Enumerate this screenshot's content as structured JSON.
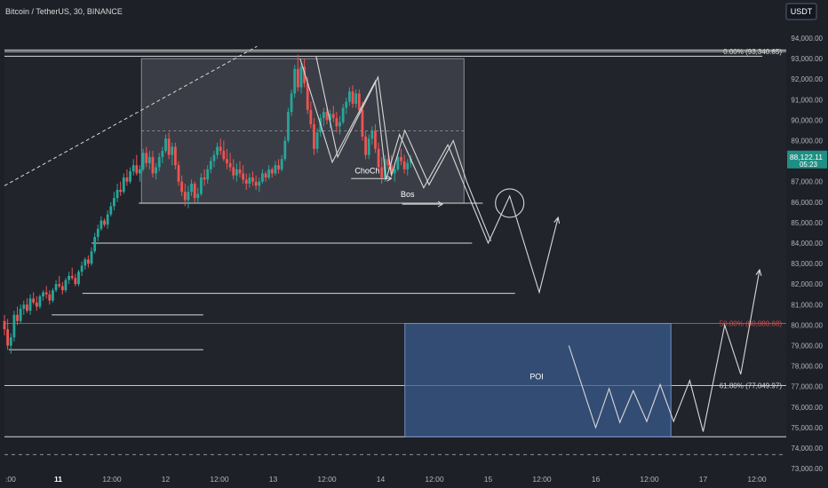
{
  "header": {
    "title": "Bitcoin / TetherUS, 30, BINANCE",
    "currency": "USDT"
  },
  "colors": {
    "background": "#1e2027",
    "panel": "#131722",
    "up": "#26a69a",
    "down": "#ef5350",
    "lines": "#d8d8d8",
    "fib_red": "#d44a4a",
    "poi_fill": "#3a5a8c",
    "last_price": "#1f8f84"
  },
  "chart_data": {
    "type": "candlestick",
    "title": "Bitcoin / TetherUS, 30, BINANCE",
    "ylim": [
      73000,
      94600
    ],
    "y_ticks": [
      {
        "value": 94000,
        "label": "94,000.00"
      },
      {
        "value": 93000,
        "label": "93,000.00"
      },
      {
        "value": 92000,
        "label": "92,000.00"
      },
      {
        "value": 91000,
        "label": "91,000.00"
      },
      {
        "value": 90000,
        "label": "90,000.00"
      },
      {
        "value": 89000,
        "label": "89,000.00"
      },
      {
        "value": 88000,
        "label": "88,000.00"
      },
      {
        "value": 87000,
        "label": "87,000.00"
      },
      {
        "value": 86000,
        "label": "86,000.00"
      },
      {
        "value": 85000,
        "label": "85,000.00"
      },
      {
        "value": 84000,
        "label": "84,000.00"
      },
      {
        "value": 83000,
        "label": "83,000.00"
      },
      {
        "value": 82000,
        "label": "82,000.00"
      },
      {
        "value": 81000,
        "label": "81,000.00"
      },
      {
        "value": 80000,
        "label": "80,000.00"
      },
      {
        "value": 79000,
        "label": "79,000.00"
      },
      {
        "value": 78000,
        "label": "78,000.00"
      },
      {
        "value": 77000,
        "label": "77,000.00"
      },
      {
        "value": 76000,
        "label": "76,000.00"
      },
      {
        "value": 75000,
        "label": "75,000.00"
      },
      {
        "value": 74000,
        "label": "74,000.00"
      },
      {
        "value": 73000,
        "label": "73,000.00"
      }
    ],
    "x_ticks": [
      {
        "t": 0,
        "label": ":00"
      },
      {
        "t": 1,
        "label": "11"
      },
      {
        "t": 2,
        "label": "12:00"
      },
      {
        "t": 3,
        "label": "12"
      },
      {
        "t": 4,
        "label": "12:00"
      },
      {
        "t": 5,
        "label": "13"
      },
      {
        "t": 6,
        "label": "12:00"
      },
      {
        "t": 7,
        "label": "14"
      },
      {
        "t": 8,
        "label": "12:00"
      },
      {
        "t": 9,
        "label": "15"
      },
      {
        "t": 10,
        "label": "12:00"
      },
      {
        "t": 11,
        "label": "16"
      },
      {
        "t": 12,
        "label": "12:00"
      },
      {
        "t": 13,
        "label": "17"
      },
      {
        "t": 14,
        "label": "12:00"
      }
    ],
    "last_price": {
      "value": 88122.11,
      "label": "88,122.11",
      "countdown": "05:23"
    },
    "candles": [
      [
        0.0,
        80200,
        80500,
        79500,
        79800
      ],
      [
        0.06,
        79800,
        80300,
        78800,
        79000
      ],
      [
        0.12,
        79000,
        79600,
        78600,
        79400
      ],
      [
        0.18,
        79400,
        80700,
        79200,
        80500
      ],
      [
        0.24,
        80500,
        80900,
        80000,
        80200
      ],
      [
        0.3,
        80200,
        81000,
        80100,
        80800
      ],
      [
        0.36,
        80800,
        81200,
        80500,
        81000
      ],
      [
        0.42,
        81000,
        81300,
        80600,
        80700
      ],
      [
        0.48,
        80700,
        81500,
        80500,
        81300
      ],
      [
        0.54,
        81300,
        81600,
        81000,
        81100
      ],
      [
        0.6,
        81100,
        81400,
        80700,
        80900
      ],
      [
        0.66,
        80900,
        81500,
        80800,
        81400
      ],
      [
        0.72,
        81400,
        81700,
        81200,
        81600
      ],
      [
        0.78,
        81600,
        81900,
        81300,
        81500
      ],
      [
        0.84,
        81500,
        81700,
        81000,
        81200
      ],
      [
        0.9,
        81200,
        81800,
        81100,
        81700
      ],
      [
        0.96,
        81700,
        82200,
        81600,
        82000
      ],
      [
        1.02,
        82000,
        82400,
        81800,
        81900
      ],
      [
        1.08,
        81900,
        82100,
        81500,
        81700
      ],
      [
        1.14,
        81700,
        82300,
        81600,
        82200
      ],
      [
        1.2,
        82200,
        82600,
        82000,
        82400
      ],
      [
        1.26,
        82400,
        82800,
        82200,
        82300
      ],
      [
        1.32,
        82300,
        82500,
        81900,
        82000
      ],
      [
        1.38,
        82000,
        82700,
        81900,
        82600
      ],
      [
        1.44,
        82600,
        83100,
        82400,
        82900
      ],
      [
        1.5,
        82900,
        83300,
        82700,
        83200
      ],
      [
        1.56,
        83200,
        83400,
        82800,
        83000
      ],
      [
        1.62,
        83000,
        83800,
        82900,
        83600
      ],
      [
        1.68,
        83600,
        84500,
        83500,
        84300
      ],
      [
        1.74,
        84300,
        84900,
        84100,
        84700
      ],
      [
        1.8,
        84700,
        85300,
        84600,
        85100
      ],
      [
        1.86,
        85100,
        85200,
        84800,
        84900
      ],
      [
        1.92,
        84900,
        85600,
        84700,
        85400
      ],
      [
        1.98,
        85400,
        86000,
        85300,
        85800
      ],
      [
        2.04,
        85800,
        86500,
        85600,
        86200
      ],
      [
        2.1,
        86200,
        86900,
        86000,
        86600
      ],
      [
        2.16,
        86600,
        87000,
        86300,
        86500
      ],
      [
        2.22,
        86500,
        87400,
        86400,
        87200
      ],
      [
        2.28,
        87200,
        87600,
        86800,
        87000
      ],
      [
        2.34,
        87000,
        87700,
        86900,
        87500
      ],
      [
        2.4,
        87500,
        88100,
        87300,
        87800
      ],
      [
        2.46,
        87800,
        88300,
        87300,
        87400
      ],
      [
        2.52,
        87400,
        87800,
        87000,
        87600
      ],
      [
        2.58,
        87600,
        88600,
        87500,
        88400
      ],
      [
        2.64,
        88400,
        88700,
        87700,
        87900
      ],
      [
        2.7,
        87900,
        88500,
        87600,
        88200
      ],
      [
        2.76,
        88200,
        88500,
        87200,
        87400
      ],
      [
        2.82,
        87400,
        87900,
        87100,
        87700
      ],
      [
        2.88,
        87700,
        88400,
        87500,
        88200
      ],
      [
        2.94,
        88200,
        88700,
        87900,
        88500
      ],
      [
        3.0,
        88500,
        89300,
        88400,
        89100
      ],
      [
        3.06,
        89100,
        89400,
        88100,
        88300
      ],
      [
        3.12,
        88300,
        88900,
        87800,
        88700
      ],
      [
        3.18,
        88700,
        88900,
        87600,
        87800
      ],
      [
        3.24,
        87800,
        88000,
        86800,
        87000
      ],
      [
        3.3,
        87000,
        87300,
        86300,
        86500
      ],
      [
        3.36,
        86500,
        86900,
        85800,
        86100
      ],
      [
        3.42,
        86100,
        86800,
        85700,
        86500
      ],
      [
        3.48,
        86500,
        87100,
        86300,
        86900
      ],
      [
        3.54,
        86900,
        87000,
        86000,
        86200
      ],
      [
        3.6,
        86200,
        86700,
        85900,
        86400
      ],
      [
        3.66,
        86400,
        87400,
        86300,
        87200
      ],
      [
        3.72,
        87200,
        87600,
        86800,
        87100
      ],
      [
        3.78,
        87100,
        87800,
        86900,
        87600
      ],
      [
        3.84,
        87600,
        88200,
        87400,
        88000
      ],
      [
        3.9,
        88000,
        88500,
        87700,
        88300
      ],
      [
        3.96,
        88300,
        88900,
        88100,
        88700
      ],
      [
        4.02,
        88700,
        89100,
        88300,
        88500
      ],
      [
        4.08,
        88500,
        89000,
        88000,
        88100
      ],
      [
        4.14,
        88100,
        88600,
        87600,
        87900
      ],
      [
        4.2,
        87900,
        88400,
        87500,
        87700
      ],
      [
        4.26,
        87700,
        88100,
        87100,
        87300
      ],
      [
        4.32,
        87300,
        87900,
        87000,
        87600
      ],
      [
        4.38,
        87600,
        88000,
        87200,
        87400
      ],
      [
        4.44,
        87400,
        87800,
        86900,
        87100
      ],
      [
        4.5,
        87100,
        87400,
        86600,
        86900
      ],
      [
        4.56,
        86900,
        87400,
        86700,
        87200
      ],
      [
        4.62,
        87200,
        87500,
        86800,
        87000
      ],
      [
        4.68,
        87000,
        87300,
        86600,
        86800
      ],
      [
        4.74,
        86800,
        87200,
        86500,
        87000
      ],
      [
        4.8,
        87000,
        87600,
        86900,
        87400
      ],
      [
        4.86,
        87400,
        87500,
        87000,
        87200
      ],
      [
        4.92,
        87200,
        87800,
        87100,
        87600
      ],
      [
        4.98,
        87600,
        87700,
        87200,
        87400
      ],
      [
        5.04,
        87400,
        88000,
        87300,
        87800
      ],
      [
        5.1,
        87800,
        88100,
        87400,
        87600
      ],
      [
        5.16,
        87600,
        88300,
        87500,
        88100
      ],
      [
        5.22,
        88100,
        89200,
        88000,
        89000
      ],
      [
        5.28,
        89000,
        90600,
        88900,
        90400
      ],
      [
        5.34,
        90400,
        91500,
        90200,
        91300
      ],
      [
        5.4,
        91300,
        92700,
        91100,
        92500
      ],
      [
        5.46,
        92500,
        93200,
        91400,
        91600
      ],
      [
        5.52,
        91600,
        92900,
        91300,
        92600
      ],
      [
        5.58,
        92600,
        93000,
        91600,
        91800
      ],
      [
        5.64,
        91800,
        92100,
        90300,
        90500
      ],
      [
        5.7,
        90500,
        90900,
        89600,
        89800
      ],
      [
        5.76,
        89800,
        90100,
        88300,
        88600
      ],
      [
        5.82,
        88600,
        89600,
        88400,
        89400
      ],
      [
        5.88,
        89400,
        90300,
        89200,
        90100
      ],
      [
        5.94,
        90100,
        90600,
        89700,
        90400
      ],
      [
        6.0,
        90400,
        90700,
        89800,
        90000
      ],
      [
        6.06,
        90000,
        90500,
        89600,
        90300
      ],
      [
        6.12,
        90300,
        90700,
        89900,
        90100
      ],
      [
        6.18,
        90100,
        90400,
        89400,
        89700
      ],
      [
        6.24,
        89700,
        90200,
        89300,
        89900
      ],
      [
        6.3,
        89900,
        90800,
        89800,
        90600
      ],
      [
        6.36,
        90600,
        91100,
        90300,
        90900
      ],
      [
        6.42,
        90900,
        91600,
        90700,
        91400
      ],
      [
        6.48,
        91400,
        91700,
        90600,
        90800
      ],
      [
        6.54,
        90800,
        91500,
        90600,
        91300
      ],
      [
        6.6,
        91300,
        91500,
        90300,
        90500
      ],
      [
        6.66,
        90500,
        90900,
        89000,
        89200
      ],
      [
        6.72,
        89200,
        89500,
        88100,
        88300
      ],
      [
        6.78,
        88300,
        89300,
        88100,
        89100
      ],
      [
        6.84,
        89100,
        89700,
        88800,
        89500
      ],
      [
        6.9,
        89500,
        89800,
        88400,
        88600
      ],
      [
        6.96,
        88600,
        88900,
        87500,
        87700
      ],
      [
        7.02,
        87700,
        88200,
        86900,
        87200
      ],
      [
        7.08,
        87200,
        88300,
        87000,
        88100
      ],
      [
        7.14,
        88100,
        88500,
        87600,
        87800
      ],
      [
        7.2,
        87800,
        88300,
        87200,
        87400
      ],
      [
        7.26,
        87400,
        87900,
        87000,
        87600
      ],
      [
        7.32,
        87600,
        88400,
        87500,
        88200
      ],
      [
        7.38,
        88200,
        88600,
        87800,
        88000
      ],
      [
        7.44,
        88000,
        88300,
        87400,
        87600
      ],
      [
        7.5,
        87600,
        88100,
        87300,
        87900
      ],
      [
        7.56,
        87900,
        88300,
        87700,
        88122
      ]
    ],
    "levels": [
      {
        "value": 93420,
        "x0": 0.0,
        "x1": 14.6
      },
      {
        "value": 93120,
        "x0": 0.0,
        "x1": 14.1
      },
      {
        "value": 85950,
        "x0": 2.5,
        "x1": 8.9
      },
      {
        "value": 84000,
        "x0": 1.62,
        "x1": 8.7
      },
      {
        "value": 81550,
        "x0": 1.45,
        "x1": 9.5
      },
      {
        "value": 80500,
        "x0": 0.88,
        "x1": 3.7
      },
      {
        "value": 78800,
        "x0": 0.08,
        "x1": 3.7
      }
    ],
    "zones": [
      {
        "name": "range-box",
        "x0": 2.55,
        "x1": 8.55,
        "y0": 93000,
        "y1": 85950
      },
      {
        "name": "poi-zone",
        "x0": 7.45,
        "x1": 12.4,
        "y0": 80080,
        "y1": 74550
      }
    ],
    "fib_levels": [
      {
        "value": 93340.65,
        "label": "0.00% (93,340.65)",
        "color": "#d8d8d8"
      },
      {
        "value": 80080.68,
        "label": "50.00% (80,080.68)",
        "color": "#d44a4a"
      },
      {
        "value": 77049.97,
        "label": "61.80% (77,049.97)",
        "color": "#d8d8d8"
      }
    ],
    "fib_frame": {
      "x0": 0.0,
      "x1": 14.6,
      "top": 93340.65,
      "bottom": 74550,
      "dashed": 73680
    },
    "labels": [
      {
        "text": "ChoCh",
        "x": 6.75,
        "y": 87400
      },
      {
        "text": "Bos",
        "x": 7.5,
        "y": 86250
      },
      {
        "text": "POI",
        "x": 9.9,
        "y": 77350
      }
    ],
    "projection_paths": [
      [
        [
          5.5,
          93000
        ],
        [
          6.1,
          87950
        ],
        [
          6.9,
          91900
        ],
        [
          7.1,
          87100
        ],
        [
          7.35,
          89300
        ],
        [
          7.8,
          86700
        ],
        [
          8.25,
          88800
        ],
        [
          8.55,
          86850
        ],
        [
          9.0,
          84000
        ],
        [
          9.4,
          86300
        ],
        [
          9.95,
          81600
        ],
        [
          10.3,
          85250
        ]
      ],
      [
        [
          5.8,
          93100
        ],
        [
          6.2,
          88200
        ],
        [
          6.95,
          92100
        ],
        [
          7.2,
          87300
        ],
        [
          7.45,
          89500
        ],
        [
          7.9,
          86850
        ],
        [
          8.35,
          89000
        ],
        [
          8.6,
          87000
        ],
        [
          9.05,
          84100
        ]
      ],
      [
        [
          10.5,
          79000
        ],
        [
          11.0,
          75000
        ],
        [
          11.25,
          76900
        ],
        [
          11.45,
          75250
        ],
        [
          11.7,
          76800
        ],
        [
          11.95,
          75300
        ],
        [
          12.2,
          77100
        ],
        [
          12.45,
          75300
        ],
        [
          12.75,
          77300
        ],
        [
          13.0,
          74800
        ],
        [
          13.4,
          80000
        ],
        [
          13.7,
          77600
        ],
        [
          14.05,
          82700
        ]
      ]
    ],
    "trend_dashed": [
      [
        0.0,
        86800
      ],
      [
        4.7,
        93600
      ]
    ],
    "circle": {
      "x": 9.4,
      "y": 85950
    }
  }
}
